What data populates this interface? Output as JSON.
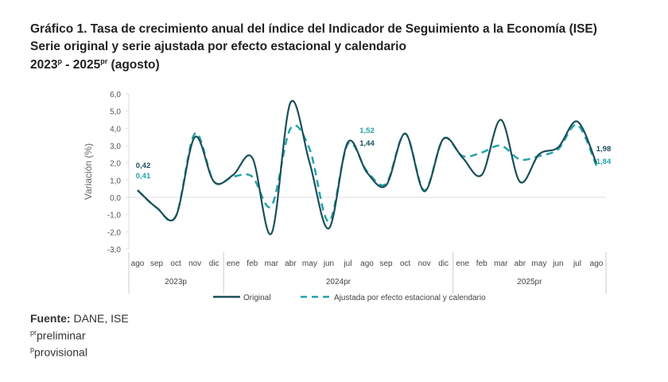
{
  "title_lines": [
    "Gráfico 1. Tasa de crecimiento anual del índice del Indicador de Seguimiento a la Economía (ISE)",
    "Serie original y serie ajustada por efecto estacional y calendario"
  ],
  "title_line3": {
    "a": "2023",
    "a_sup": "p",
    "b": " - 2025",
    "b_sup": "pr",
    "c": " (agosto)"
  },
  "chart_data": {
    "type": "line",
    "ylabel": "Variación (%)",
    "ylim": [
      -3,
      6
    ],
    "yticks": [
      "6,0",
      "5,0",
      "4,0",
      "3,0",
      "2,0",
      "1,0",
      "0,0",
      "-1,0",
      "-2,0",
      "-3,0"
    ],
    "yticks_values": [
      6,
      5,
      4,
      3,
      2,
      1,
      0,
      -1,
      -2,
      -3
    ],
    "categories": [
      "ago",
      "sep",
      "oct",
      "nov",
      "dic",
      "ene",
      "feb",
      "mar",
      "abr",
      "may",
      "jun",
      "jul",
      "ago",
      "sep",
      "oct",
      "nov",
      "dic",
      "ene",
      "feb",
      "mar",
      "abr",
      "may",
      "jun",
      "jul",
      "ago"
    ],
    "groups": [
      {
        "label": "2023p",
        "count": 5
      },
      {
        "label": "2024pr",
        "count": 12
      },
      {
        "label": "2025pr",
        "count": 8
      }
    ],
    "series": [
      {
        "name": "Original",
        "color": "#1b4f5a",
        "style": "solid",
        "values": [
          0.42,
          -0.6,
          -1.1,
          3.5,
          0.9,
          1.3,
          2.3,
          -2.1,
          5.5,
          2.0,
          -1.8,
          3.2,
          1.44,
          0.7,
          3.7,
          0.35,
          3.4,
          2.3,
          1.3,
          4.5,
          0.9,
          2.5,
          2.9,
          4.4,
          1.98
        ]
      },
      {
        "name": "Ajustada por efecto estacional y calendario",
        "color": "#22a3a8",
        "style": "dashed",
        "values": [
          0.41,
          -0.6,
          -1.1,
          3.7,
          0.9,
          1.2,
          1.2,
          -0.5,
          4.0,
          2.8,
          -1.4,
          3.1,
          1.52,
          0.8,
          3.7,
          0.4,
          3.4,
          2.4,
          2.6,
          3.0,
          2.2,
          2.4,
          2.8,
          4.2,
          1.84
        ]
      }
    ],
    "data_labels": [
      {
        "series": 0,
        "index": 0,
        "text": "0,42"
      },
      {
        "series": 1,
        "index": 0,
        "text": "0,41"
      },
      {
        "series": 1,
        "index": 12,
        "text": "1,52"
      },
      {
        "series": 0,
        "index": 12,
        "text": "1,44"
      },
      {
        "series": 0,
        "index": 24,
        "text": "1,98"
      },
      {
        "series": 1,
        "index": 24,
        "text": "1,84"
      }
    ],
    "legend": "bottom"
  },
  "footer": {
    "source_label": "Fuente:",
    "source": " DANE, ISE",
    "pr_sup": "pr",
    "pr": "preliminar",
    "p_sup": "p",
    "p": "provisional"
  }
}
